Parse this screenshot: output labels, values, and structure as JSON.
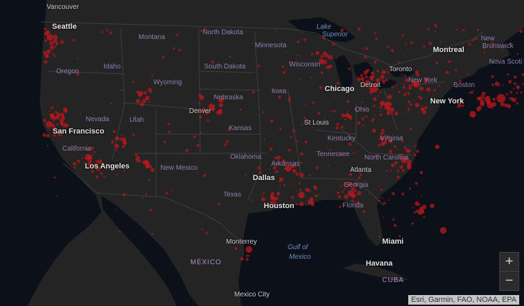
{
  "map": {
    "labels": {
      "vancouver": "Vancouver",
      "seattle": "Seattle",
      "montana": "Montana",
      "north_dakota": "North Dakota",
      "minnesota": "Minnesota",
      "lake_superior_1": "Lake",
      "lake_superior_2": "Superior",
      "oregon": "Oregon",
      "idaho": "Idaho",
      "wyoming": "Wyoming",
      "south_dakota": "South Dakota",
      "wisconsin": "Wisconsin",
      "montreal": "Montreal",
      "new_brunswick_1": "New",
      "new_brunswick_2": "Brunswick",
      "nova_scotia": "Nova Scoti",
      "toronto": "Toronto",
      "new_york_state": "New York",
      "boston": "Boston",
      "chicago": "Chicago",
      "detroit": "Detroit",
      "iowa": "Iowa",
      "nebraska": "Nebraska",
      "nevada": "Nevada",
      "utah": "Utah",
      "denver": "Denver",
      "san_francisco": "San Francisco",
      "california": "California",
      "new_york": "New York",
      "ohio": "Ohio",
      "st_louis": "St Louis",
      "kansas": "Kansas",
      "kentucky": "Kentucky",
      "virginia": "Virginia",
      "tennessee": "Tennessee",
      "north_carolina": "North Carolina",
      "los_angeles": "Los Angeles",
      "new_mexico": "New Mexico",
      "oklahoma": "Oklahoma",
      "arkansas": "Arkansas",
      "atlanta": "Atlanta",
      "georgia": "Georgia",
      "dallas": "Dallas",
      "texas": "Texas",
      "houston": "Houston",
      "florida": "Florida",
      "miami": "Miami",
      "gulf_1": "Gulf of",
      "gulf_2": "Mexico",
      "monterrey": "Monterrey",
      "mexico_country": "MÉXICO",
      "havana": "Havana",
      "cuba": "CUBA",
      "mexico_city": "Mexico City"
    },
    "zoom_in_label": "+",
    "zoom_out_label": "−",
    "attribution": "Esri, Garmin, FAO, NOAA, EPA",
    "colors": {
      "marker": "#c0171d",
      "land": "#242424",
      "water": "#0c1119"
    },
    "hotspots": [
      {
        "name": "Seattle",
        "lon": -122.33,
        "lat": 47.61,
        "size": 3
      },
      {
        "name": "Portland",
        "lon": -122.68,
        "lat": 45.52,
        "size": 2
      },
      {
        "name": "San Francisco",
        "lon": -122.42,
        "lat": 37.77,
        "size": 3
      },
      {
        "name": "San Jose",
        "lon": -121.89,
        "lat": 37.34,
        "size": 2
      },
      {
        "name": "Sacramento",
        "lon": -121.49,
        "lat": 38.58,
        "size": 2
      },
      {
        "name": "Los Angeles",
        "lon": -118.24,
        "lat": 34.05,
        "size": 3
      },
      {
        "name": "San Diego",
        "lon": -117.16,
        "lat": 32.72,
        "size": 2
      },
      {
        "name": "Phoenix",
        "lon": -112.07,
        "lat": 33.45,
        "size": 2
      },
      {
        "name": "Las Vegas",
        "lon": -115.14,
        "lat": 36.17,
        "size": 2
      },
      {
        "name": "Salt Lake City",
        "lon": -111.89,
        "lat": 40.76,
        "size": 2
      },
      {
        "name": "Denver",
        "lon": -104.99,
        "lat": 39.74,
        "size": 3
      },
      {
        "name": "Dallas",
        "lon": -96.8,
        "lat": 32.78,
        "size": 3
      },
      {
        "name": "Houston",
        "lon": -95.37,
        "lat": 29.76,
        "size": 3
      },
      {
        "name": "San Antonio",
        "lon": -98.49,
        "lat": 29.42,
        "size": 2
      },
      {
        "name": "New Orleans",
        "lon": -90.07,
        "lat": 29.95,
        "size": 3
      },
      {
        "name": "Minneapolis",
        "lon": -93.27,
        "lat": 44.98,
        "size": 2
      },
      {
        "name": "Milwaukee",
        "lon": -87.91,
        "lat": 43.04,
        "size": 2
      },
      {
        "name": "Chicago",
        "lon": -87.63,
        "lat": 41.88,
        "size": 4
      },
      {
        "name": "Detroit",
        "lon": -83.05,
        "lat": 42.33,
        "size": 3
      },
      {
        "name": "Indianapolis",
        "lon": -86.16,
        "lat": 39.77,
        "size": 2
      },
      {
        "name": "Columbus",
        "lon": -82.99,
        "lat": 39.96,
        "size": 2
      },
      {
        "name": "St Louis",
        "lon": -90.2,
        "lat": 38.63,
        "size": 2
      },
      {
        "name": "Atlanta",
        "lon": -84.39,
        "lat": 33.75,
        "size": 3
      },
      {
        "name": "Nashville",
        "lon": -86.78,
        "lat": 36.16,
        "size": 2
      },
      {
        "name": "Charlotte",
        "lon": -80.84,
        "lat": 35.23,
        "size": 2
      },
      {
        "name": "Miami",
        "lon": -80.19,
        "lat": 25.76,
        "size": 3
      },
      {
        "name": "Orlando",
        "lon": -81.38,
        "lat": 28.54,
        "size": 2
      },
      {
        "name": "Tampa",
        "lon": -82.46,
        "lat": 27.95,
        "size": 2
      },
      {
        "name": "Washington",
        "lon": -77.04,
        "lat": 38.91,
        "size": 3
      },
      {
        "name": "Philadelphia",
        "lon": -75.17,
        "lat": 39.95,
        "size": 3
      },
      {
        "name": "New York",
        "lon": -74.0,
        "lat": 40.71,
        "size": 4
      },
      {
        "name": "Boston",
        "lon": -71.06,
        "lat": 42.36,
        "size": 3
      },
      {
        "name": "Mexico",
        "lon": -101.0,
        "lat": 23.6,
        "size": 3
      }
    ]
  }
}
